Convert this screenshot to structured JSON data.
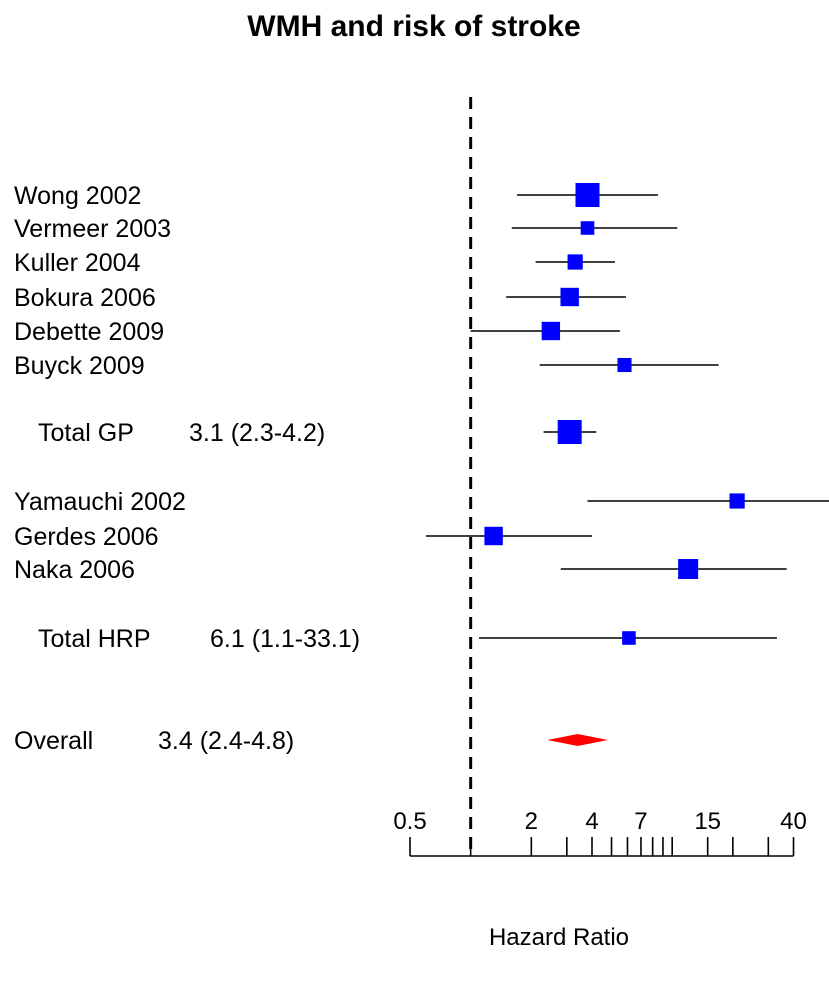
{
  "chart_data": {
    "type": "forest",
    "title": "WMH and risk of stroke",
    "xlabel": "Hazard Ratio",
    "x_scale": "log",
    "xlim": [
      0.5,
      60
    ],
    "reference_line": 1,
    "tick_labels": [
      "0.5",
      "2",
      "4",
      "7",
      "15",
      "40"
    ],
    "tick_label_values": [
      0.5,
      2,
      4,
      7,
      15,
      40
    ],
    "minor_ticks": [
      1,
      3,
      5,
      6,
      8,
      9,
      10,
      20,
      30,
      50,
      60
    ],
    "studies": [
      {
        "label": "Wong 2002",
        "hr": 3.8,
        "lower": 1.7,
        "upper": 8.5,
        "weight": 1.0
      },
      {
        "label": "Vermeer 2003",
        "hr": 3.8,
        "lower": 1.6,
        "upper": 10.6,
        "weight": 0.35
      },
      {
        "label": "Kuller 2004",
        "hr": 3.3,
        "lower": 2.1,
        "upper": 5.2,
        "weight": 0.45
      },
      {
        "label": "Bokura 2006",
        "hr": 3.1,
        "lower": 1.5,
        "upper": 5.9,
        "weight": 0.65
      },
      {
        "label": "Debette 2009",
        "hr": 2.5,
        "lower": 1.0,
        "upper": 5.5,
        "weight": 0.65
      },
      {
        "label": "Buyck 2009",
        "hr": 5.8,
        "lower": 2.2,
        "upper": 17.0,
        "weight": 0.38
      }
    ],
    "total_gp": {
      "label": "Total GP",
      "value_text": "3.1 (2.3-4.2)",
      "hr": 3.1,
      "lower": 2.3,
      "upper": 4.2,
      "weight": 1.0
    },
    "hrp_studies": [
      {
        "label": "Yamauchi 2002",
        "hr": 21.0,
        "lower": 3.8,
        "upper": 60,
        "weight": 0.45
      },
      {
        "label": "Gerdes 2006",
        "hr": 1.3,
        "lower": 0.6,
        "upper": 4.0,
        "weight": 0.65
      },
      {
        "label": "Naka 2006",
        "hr": 12.0,
        "lower": 2.8,
        "upper": 37.0,
        "weight": 0.75
      }
    ],
    "total_hrp": {
      "label": "Total HRP",
      "value_text": "6.1 (1.1-33.1)",
      "hr": 6.1,
      "lower": 1.1,
      "upper": 33.1,
      "weight": 0.35
    },
    "overall": {
      "label": "Overall",
      "value_text": "3.4 (2.4-4.8)",
      "hr": 3.4,
      "lower": 2.4,
      "upper": 4.8
    },
    "colors": {
      "box": "#0000ff",
      "diamond": "#ff0000",
      "line": "#000000"
    }
  }
}
